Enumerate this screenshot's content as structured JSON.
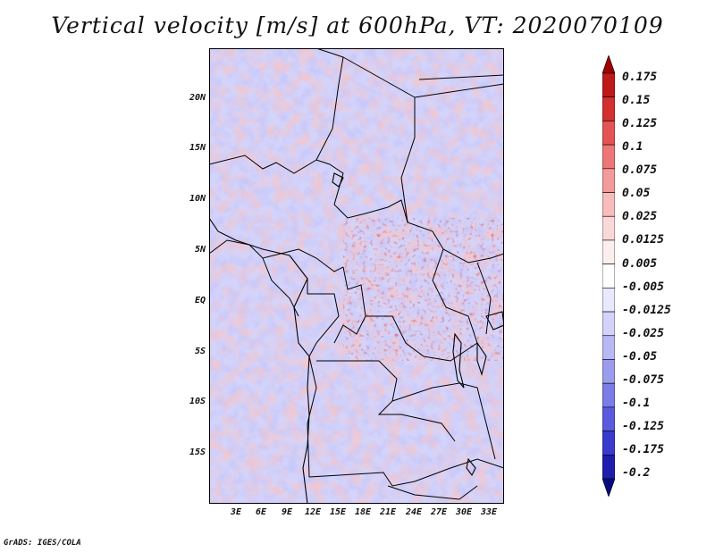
{
  "title": "Vertical velocity [m/s] at 600hPa, VT: 2020070109",
  "footer": "GrADS: IGES/COLA",
  "map": {
    "lat_ticks": [
      "20N",
      "15N",
      "10N",
      "5N",
      "EQ",
      "5S",
      "10S",
      "15S"
    ],
    "lon_ticks": [
      "3E",
      "6E",
      "9E",
      "12E",
      "15E",
      "18E",
      "21E",
      "24E",
      "27E",
      "30E",
      "33E"
    ],
    "border_color": "#000000"
  },
  "colorbar": {
    "labels": [
      "0.175",
      "0.15",
      "0.125",
      "0.1",
      "0.075",
      "0.05",
      "0.025",
      "0.0125",
      "0.005",
      "-0.005",
      "-0.0125",
      "-0.025",
      "-0.05",
      "-0.075",
      "-0.1",
      "-0.125",
      "-0.175",
      "-0.2"
    ],
    "colors": [
      "#a00000",
      "#be1a1a",
      "#d33030",
      "#e35555",
      "#ed7777",
      "#f39a9a",
      "#f8bcbc",
      "#fbd8d8",
      "#fdeeee",
      "#ffffff",
      "#e8e8ff",
      "#d2d2fb",
      "#b8b8f5",
      "#9c9cee",
      "#7c7ce6",
      "#5a5ade",
      "#3a3acc",
      "#1e1eaa",
      "#0a0a80"
    ]
  }
}
